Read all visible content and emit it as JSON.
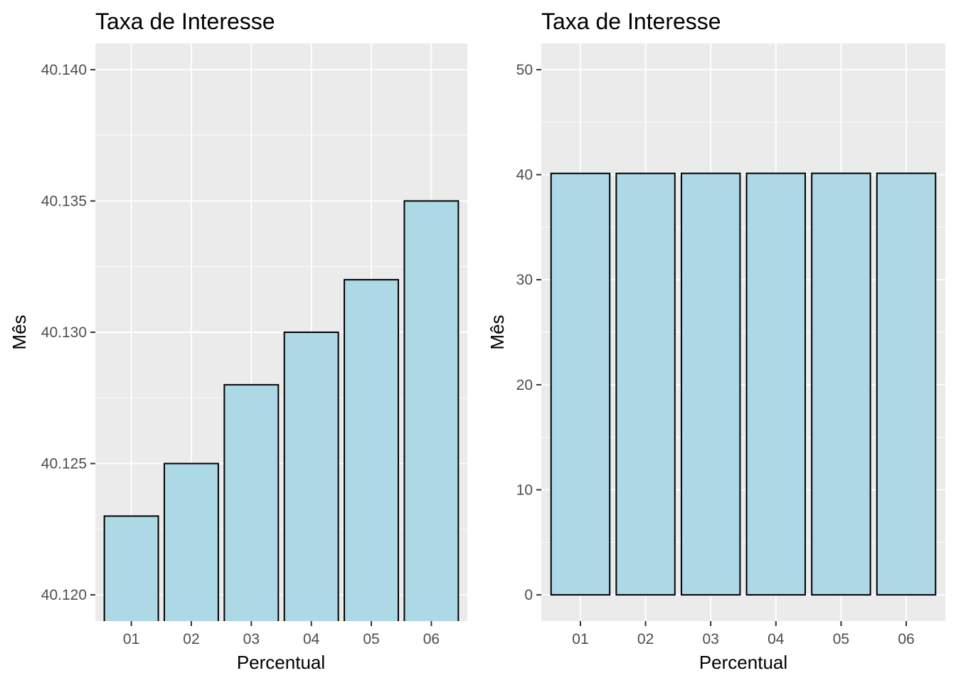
{
  "colors": {
    "panel_background": "#ebebeb",
    "gridline": "#ffffff",
    "bar_fill": "#add8e6",
    "bar_outline": "#000000",
    "tick_text": "#4d4d4d",
    "tick_mark": "#333333"
  },
  "chart_data": [
    {
      "type": "bar",
      "title": "Taxa de Interesse",
      "xlabel": "Percentual",
      "ylabel": "Mês",
      "categories": [
        "01",
        "02",
        "03",
        "04",
        "05",
        "06"
      ],
      "values": [
        40.123,
        40.125,
        40.128,
        40.13,
        40.132,
        40.135
      ],
      "ylim": [
        40.119,
        40.141
      ],
      "yticks": [
        40.12,
        40.125,
        40.13,
        40.135,
        40.14
      ],
      "ytick_labels": [
        "40.120",
        "40.125",
        "40.130",
        "40.135",
        "40.140"
      ],
      "bar_baseline": "below-axis",
      "grid": true,
      "legend": "none"
    },
    {
      "type": "bar",
      "title": "Taxa de Interesse",
      "xlabel": "Percentual",
      "ylabel": "Mês",
      "categories": [
        "01",
        "02",
        "03",
        "04",
        "05",
        "06"
      ],
      "values": [
        40.123,
        40.125,
        40.128,
        40.13,
        40.132,
        40.135
      ],
      "ylim": [
        -2.5,
        52.5
      ],
      "yticks": [
        0,
        10,
        20,
        30,
        40,
        50
      ],
      "ytick_labels": [
        "0",
        "10",
        "20",
        "30",
        "40",
        "50"
      ],
      "bar_baseline": "zero",
      "grid": true,
      "legend": "none"
    }
  ]
}
